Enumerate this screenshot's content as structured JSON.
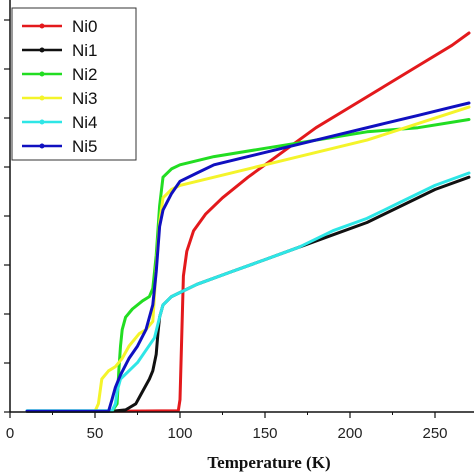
{
  "chart_data": {
    "type": "line",
    "title": "",
    "xlabel": "Temperature (K)",
    "ylabel": "",
    "xlim": [
      0,
      270
    ],
    "ylim": [
      0,
      1
    ],
    "x_ticks": [
      0,
      50,
      100,
      150,
      200,
      250
    ],
    "y_tick_count": 8,
    "grid": false,
    "legend_position": "top-left",
    "series": [
      {
        "name": "Ni0",
        "color": "#e3191c",
        "points": [
          [
            10,
            0.002
          ],
          [
            60,
            0.002
          ],
          [
            99,
            0.003
          ],
          [
            100,
            0.03
          ],
          [
            101,
            0.18
          ],
          [
            102,
            0.33
          ],
          [
            104,
            0.39
          ],
          [
            108,
            0.44
          ],
          [
            115,
            0.48
          ],
          [
            125,
            0.52
          ],
          [
            140,
            0.57
          ],
          [
            160,
            0.63
          ],
          [
            180,
            0.69
          ],
          [
            200,
            0.74
          ],
          [
            220,
            0.79
          ],
          [
            240,
            0.84
          ],
          [
            260,
            0.89
          ],
          [
            270,
            0.92
          ]
        ]
      },
      {
        "name": "Ni1",
        "color": "#111111",
        "points": [
          [
            10,
            0.002
          ],
          [
            60,
            0.002
          ],
          [
            68,
            0.005
          ],
          [
            74,
            0.02
          ],
          [
            78,
            0.05
          ],
          [
            82,
            0.08
          ],
          [
            84,
            0.1
          ],
          [
            86,
            0.14
          ],
          [
            87,
            0.19
          ],
          [
            88,
            0.23
          ],
          [
            90,
            0.26
          ],
          [
            95,
            0.28
          ],
          [
            100,
            0.29
          ],
          [
            110,
            0.31
          ],
          [
            130,
            0.34
          ],
          [
            150,
            0.37
          ],
          [
            170,
            0.4
          ],
          [
            190,
            0.43
          ],
          [
            210,
            0.46
          ],
          [
            230,
            0.5
          ],
          [
            250,
            0.54
          ],
          [
            270,
            0.57
          ]
        ]
      },
      {
        "name": "Ni2",
        "color": "#22dd22",
        "points": [
          [
            10,
            0.002
          ],
          [
            60,
            0.002
          ],
          [
            63,
            0.02
          ],
          [
            64,
            0.1
          ],
          [
            65,
            0.16
          ],
          [
            66,
            0.2
          ],
          [
            68,
            0.23
          ],
          [
            72,
            0.25
          ],
          [
            78,
            0.27
          ],
          [
            82,
            0.28
          ],
          [
            84,
            0.3
          ],
          [
            86,
            0.38
          ],
          [
            88,
            0.5
          ],
          [
            90,
            0.57
          ],
          [
            95,
            0.59
          ],
          [
            100,
            0.6
          ],
          [
            120,
            0.62
          ],
          [
            150,
            0.64
          ],
          [
            180,
            0.66
          ],
          [
            210,
            0.68
          ],
          [
            240,
            0.69
          ],
          [
            270,
            0.71
          ]
        ]
      },
      {
        "name": "Ni3",
        "color": "#f4f42a",
        "points": [
          [
            10,
            0.002
          ],
          [
            50,
            0.002
          ],
          [
            52,
            0.02
          ],
          [
            54,
            0.08
          ],
          [
            58,
            0.1
          ],
          [
            62,
            0.11
          ],
          [
            66,
            0.13
          ],
          [
            70,
            0.16
          ],
          [
            76,
            0.19
          ],
          [
            80,
            0.2
          ],
          [
            84,
            0.22
          ],
          [
            86,
            0.35
          ],
          [
            88,
            0.46
          ],
          [
            90,
            0.52
          ],
          [
            95,
            0.54
          ],
          [
            100,
            0.55
          ],
          [
            120,
            0.57
          ],
          [
            150,
            0.6
          ],
          [
            180,
            0.63
          ],
          [
            210,
            0.66
          ],
          [
            240,
            0.7
          ],
          [
            270,
            0.74
          ]
        ]
      },
      {
        "name": "Ni4",
        "color": "#2ee6e6",
        "points": [
          [
            10,
            0.003
          ],
          [
            60,
            0.003
          ],
          [
            62,
            0.02
          ],
          [
            63,
            0.05
          ],
          [
            65,
            0.08
          ],
          [
            70,
            0.1
          ],
          [
            75,
            0.12
          ],
          [
            80,
            0.15
          ],
          [
            85,
            0.18
          ],
          [
            88,
            0.23
          ],
          [
            90,
            0.26
          ],
          [
            95,
            0.28
          ],
          [
            100,
            0.29
          ],
          [
            110,
            0.31
          ],
          [
            130,
            0.34
          ],
          [
            150,
            0.37
          ],
          [
            170,
            0.4
          ],
          [
            190,
            0.44
          ],
          [
            210,
            0.47
          ],
          [
            230,
            0.51
          ],
          [
            250,
            0.55
          ],
          [
            270,
            0.58
          ]
        ]
      },
      {
        "name": "Ni5",
        "color": "#1010c0",
        "points": [
          [
            10,
            0.002
          ],
          [
            58,
            0.002
          ],
          [
            60,
            0.03
          ],
          [
            62,
            0.06
          ],
          [
            65,
            0.09
          ],
          [
            70,
            0.13
          ],
          [
            75,
            0.16
          ],
          [
            80,
            0.2
          ],
          [
            84,
            0.26
          ],
          [
            86,
            0.34
          ],
          [
            88,
            0.45
          ],
          [
            90,
            0.49
          ],
          [
            95,
            0.53
          ],
          [
            100,
            0.56
          ],
          [
            110,
            0.58
          ],
          [
            120,
            0.6
          ],
          [
            140,
            0.62
          ],
          [
            160,
            0.64
          ],
          [
            180,
            0.66
          ],
          [
            200,
            0.68
          ],
          [
            220,
            0.7
          ],
          [
            240,
            0.72
          ],
          [
            260,
            0.74
          ],
          [
            270,
            0.75
          ]
        ]
      }
    ]
  }
}
